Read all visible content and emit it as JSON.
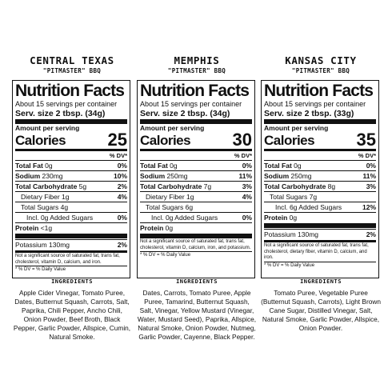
{
  "labels": [
    {
      "region": "CENTRAL TEXAS",
      "product": "\"PITMASTER\" BBQ",
      "title": "Nutrition Facts",
      "servings": "About 15 servings per container",
      "serving_size": "Serv. size  2 tbsp. (34g)",
      "amount_per_serving": "Amount per serving",
      "calories_label": "Calories",
      "calories": "25",
      "dv_header": "% DV*",
      "rows": [
        {
          "label": "Total Fat",
          "amount": "0g",
          "dv": "0%",
          "bold": true,
          "indent": 0
        },
        {
          "label": "Sodium",
          "amount": "230mg",
          "dv": "10%",
          "bold": true,
          "indent": 0
        },
        {
          "label": "Total Carbohydrate",
          "amount": "5g",
          "dv": "2%",
          "bold": true,
          "indent": 0
        },
        {
          "label": "Dietary Fiber",
          "amount": "1g",
          "dv": "4%",
          "bold": false,
          "indent": 1
        },
        {
          "label": "Total Sugars",
          "amount": "4g",
          "dv": "",
          "bold": false,
          "indent": 1
        },
        {
          "label": "Incl. 0g Added Sugars",
          "amount": "",
          "dv": "0%",
          "bold": false,
          "indent": 2
        },
        {
          "label": "Protein",
          "amount": "<1g",
          "dv": "",
          "bold": true,
          "indent": 0
        }
      ],
      "potassium": {
        "label": "Potassium 130mg",
        "dv": "2%"
      },
      "footnote": "Not a significant source of saturated fat, trans fat, cholesterol, vitamin D, calcium, and iron.",
      "daily_value": "* % DV = % Daily Value",
      "ingredients_heading": "INGREDIENTS",
      "ingredients": "Apple Cider Vinegar, Tomato Puree, Dates, Butternut Squash, Carrots, Salt, Paprika, Chili Pepper, Ancho Chili, Onion Powder, Beef Broth, Black Pepper, Garlic Powder, Allspice, Cumin, Natural Smoke."
    },
    {
      "region": "MEMPHIS",
      "product": "\"PITMASTER\" BBQ",
      "title": "Nutrition Facts",
      "servings": "About 15 servings per container",
      "serving_size": "Serv. size  2 tbsp. (34g)",
      "amount_per_serving": "Amount per serving",
      "calories_label": "Calories",
      "calories": "30",
      "dv_header": "% DV*",
      "rows": [
        {
          "label": "Total Fat",
          "amount": "0g",
          "dv": "0%",
          "bold": true,
          "indent": 0
        },
        {
          "label": "Sodium",
          "amount": "250mg",
          "dv": "11%",
          "bold": true,
          "indent": 0
        },
        {
          "label": "Total Carbohydrate",
          "amount": "7g",
          "dv": "3%",
          "bold": true,
          "indent": 0
        },
        {
          "label": "Dietary Fiber",
          "amount": "1g",
          "dv": "4%",
          "bold": false,
          "indent": 1
        },
        {
          "label": "Total Sugars",
          "amount": "6g",
          "dv": "",
          "bold": false,
          "indent": 1
        },
        {
          "label": "Incl. 0g Added Sugars",
          "amount": "",
          "dv": "0%",
          "bold": false,
          "indent": 2
        },
        {
          "label": "Protein",
          "amount": "0g",
          "dv": "",
          "bold": true,
          "indent": 0
        }
      ],
      "potassium": null,
      "footnote": "Not a significant source of saturated fat, trans fat, cholesterol, vitamin D, calcium, iron, and potassium.",
      "daily_value": "* % DV = % Daily Value",
      "ingredients_heading": "INGREDIENTS",
      "ingredients": "Dates, Carrots, Tomato Puree, Apple Puree, Tamarind, Butternut Squash, Salt, Vinegar, Yellow Mustard (Vinegar, Water, Mustard Seed), Paprika, Allspice, Natural Smoke, Onion Powder, Nutmeg, Garlic Powder, Cayenne, Black Pepper."
    },
    {
      "region": "KANSAS CITY",
      "product": "\"PITMASTER\" BBQ",
      "title": "Nutrition Facts",
      "servings": "About 15 servings per container",
      "serving_size": "Serv. size  2 tbsp. (33g)",
      "amount_per_serving": "Amount per serving",
      "calories_label": "Calories",
      "calories": "35",
      "dv_header": "% DV*",
      "rows": [
        {
          "label": "Total Fat",
          "amount": "0g",
          "dv": "0%",
          "bold": true,
          "indent": 0
        },
        {
          "label": "Sodium",
          "amount": "250mg",
          "dv": "11%",
          "bold": true,
          "indent": 0
        },
        {
          "label": "Total Carbohydrate",
          "amount": "8g",
          "dv": "3%",
          "bold": true,
          "indent": 0
        },
        {
          "label": "Total Sugars",
          "amount": "7g",
          "dv": "",
          "bold": false,
          "indent": 1
        },
        {
          "label": "Incl. 6g Added Sugars",
          "amount": "",
          "dv": "12%",
          "bold": false,
          "indent": 2
        },
        {
          "label": "Protein",
          "amount": "0g",
          "dv": "",
          "bold": true,
          "indent": 0
        }
      ],
      "potassium": {
        "label": "Potassium 130mg",
        "dv": "2%"
      },
      "footnote": "Not a significant source of saturated fat, trans fat, cholesterol, dietary fiber, vitamin D, calcium, and iron.",
      "daily_value": "* % DV = % Daily Value",
      "ingredients_heading": "INGREDIENTS",
      "ingredients": "Tomato Puree, Vegetable Puree (Butternut Squash, Carrots), Light Brown Cane Sugar, Distilled Vinegar, Salt, Natural Smoke, Garlic Powder, Allspice, Onion Powder."
    }
  ]
}
